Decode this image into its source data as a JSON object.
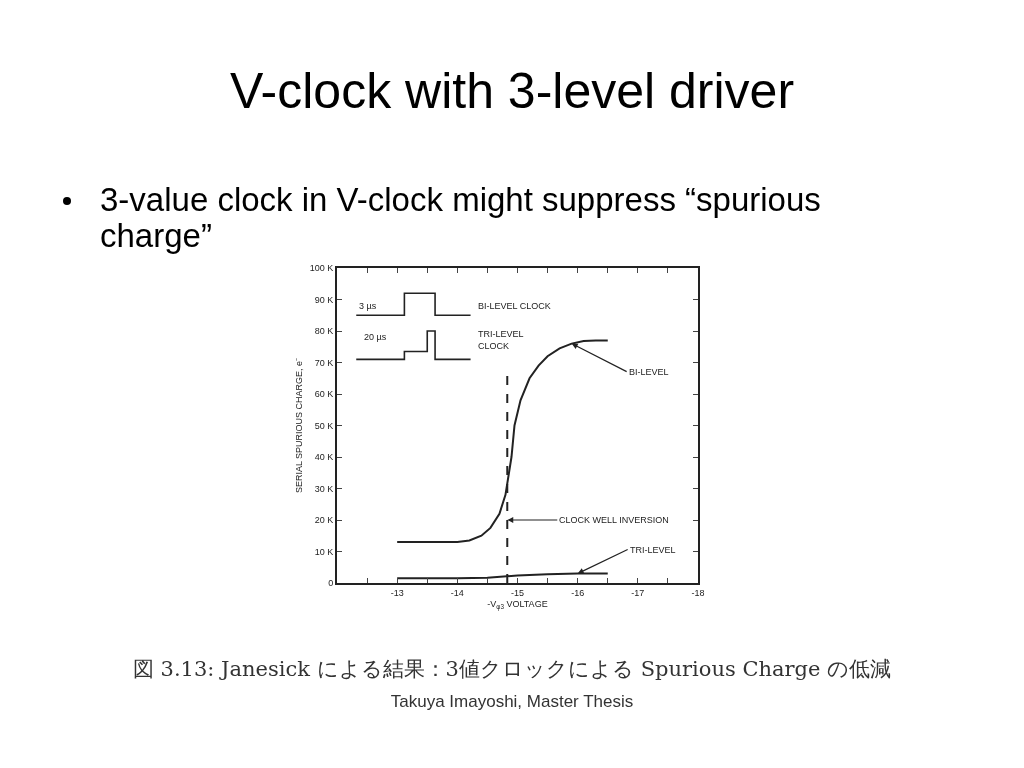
{
  "chart_data": {
    "type": "line",
    "title": "V-clock with 3-level driver",
    "subtitle": "3-value clock in V-clock might suppress “spurious charge”",
    "xlabel": "-V$_{φ3}$ VOLTAGE",
    "ylabel": "SERIAL SPURIOUS CHARGE, e⁻",
    "xlim": [
      -12,
      -18
    ],
    "xticks": [
      {
        "value": -12,
        "label": null
      },
      {
        "value": -12.5,
        "label": null
      },
      -13,
      {
        "value": -13.5,
        "label": null
      },
      -14,
      {
        "value": -14.5,
        "label": null
      },
      -15,
      {
        "value": -15.5,
        "label": null
      },
      -16,
      {
        "value": -16.5,
        "label": null
      },
      -17,
      {
        "value": -17.5,
        "label": null
      },
      -18
    ],
    "ylim": [
      0,
      100000
    ],
    "yticks": [
      0,
      {
        "value": 10000,
        "label": "10 K"
      },
      {
        "value": 20000,
        "label": "20 K"
      },
      {
        "value": 30000,
        "label": "30 K"
      },
      {
        "value": 40000,
        "label": "40 K"
      },
      {
        "value": 50000,
        "label": "50 K"
      },
      {
        "value": 60000,
        "label": "60 K"
      },
      {
        "value": 70000,
        "label": "70 K"
      },
      {
        "value": 80000,
        "label": "80 K"
      },
      {
        "value": 90000,
        "label": "90 K"
      },
      {
        "value": 100000,
        "label": "100 K"
      }
    ],
    "grid": false,
    "marker": "none",
    "line_style": "solid",
    "series": [
      {
        "color": "#222222",
        "x": [
          -13,
          -13.5,
          -14,
          -14.2,
          -14.4,
          -14.55,
          -14.7,
          -14.8,
          -14.9,
          -14.95,
          -15.05,
          -15.2,
          -15.35,
          -15.5,
          -15.7,
          -15.9,
          -16.1,
          -16.3,
          -16.5
        ],
        "values": [
          13000,
          13000,
          13000,
          13500,
          15000,
          17500,
          22000,
          28000,
          40000,
          50000,
          58000,
          65000,
          69000,
          72000,
          74500,
          76000,
          76800,
          77000,
          77000
        ]
      },
      {
        "color": "#222222",
        "x": [
          -13,
          -13.5,
          -14,
          -14.5,
          -15,
          -15.5,
          -16,
          -16.5
        ],
        "values": [
          1500,
          1500,
          1500,
          1700,
          2400,
          2800,
          3000,
          3000
        ]
      },
      {
        "color": "#222222",
        "line_style": "dashed",
        "x": [
          -14.83,
          -14.83
        ],
        "values": [
          0,
          66000
        ]
      }
    ],
    "annotations": [
      "3 µs",
      "BI-LEVEL CLOCK",
      "20 µs",
      "TRI-LEVEL\nCLOCK",
      {
        "text": "BI-LEVEL",
        "x": -15.9,
        "y": 76000
      },
      {
        "text": "CLOCK WELL INVERSION",
        "x": -14.83,
        "y": 20000
      },
      {
        "text": "TRI-LEVEL",
        "x": -16,
        "y": 3000
      },
      "図 3.13: Janesick による結果：3値クロックによる Spurious Charge の低減",
      "Takuya Imayoshi, Master Thesis"
    ]
  }
}
